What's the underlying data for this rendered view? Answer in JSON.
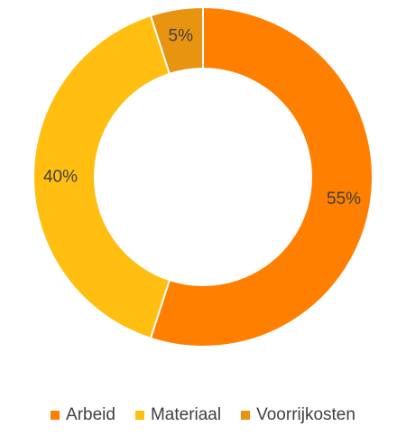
{
  "chart_data": {
    "type": "pie",
    "variant": "donut",
    "title": "",
    "categories": [
      "Arbeid",
      "Materiaal",
      "Voorrijkosten"
    ],
    "values": [
      55,
      40,
      5
    ],
    "data_labels": [
      "55%",
      "40%",
      "5%"
    ],
    "colors": [
      "#FF7F00",
      "#FFBE10",
      "#E89410"
    ],
    "legend": {
      "placement": "bottom",
      "entries": [
        "Arbeid",
        "Materiaal",
        "Voorrijkosten"
      ]
    },
    "start_angle": "top, clockwise"
  }
}
